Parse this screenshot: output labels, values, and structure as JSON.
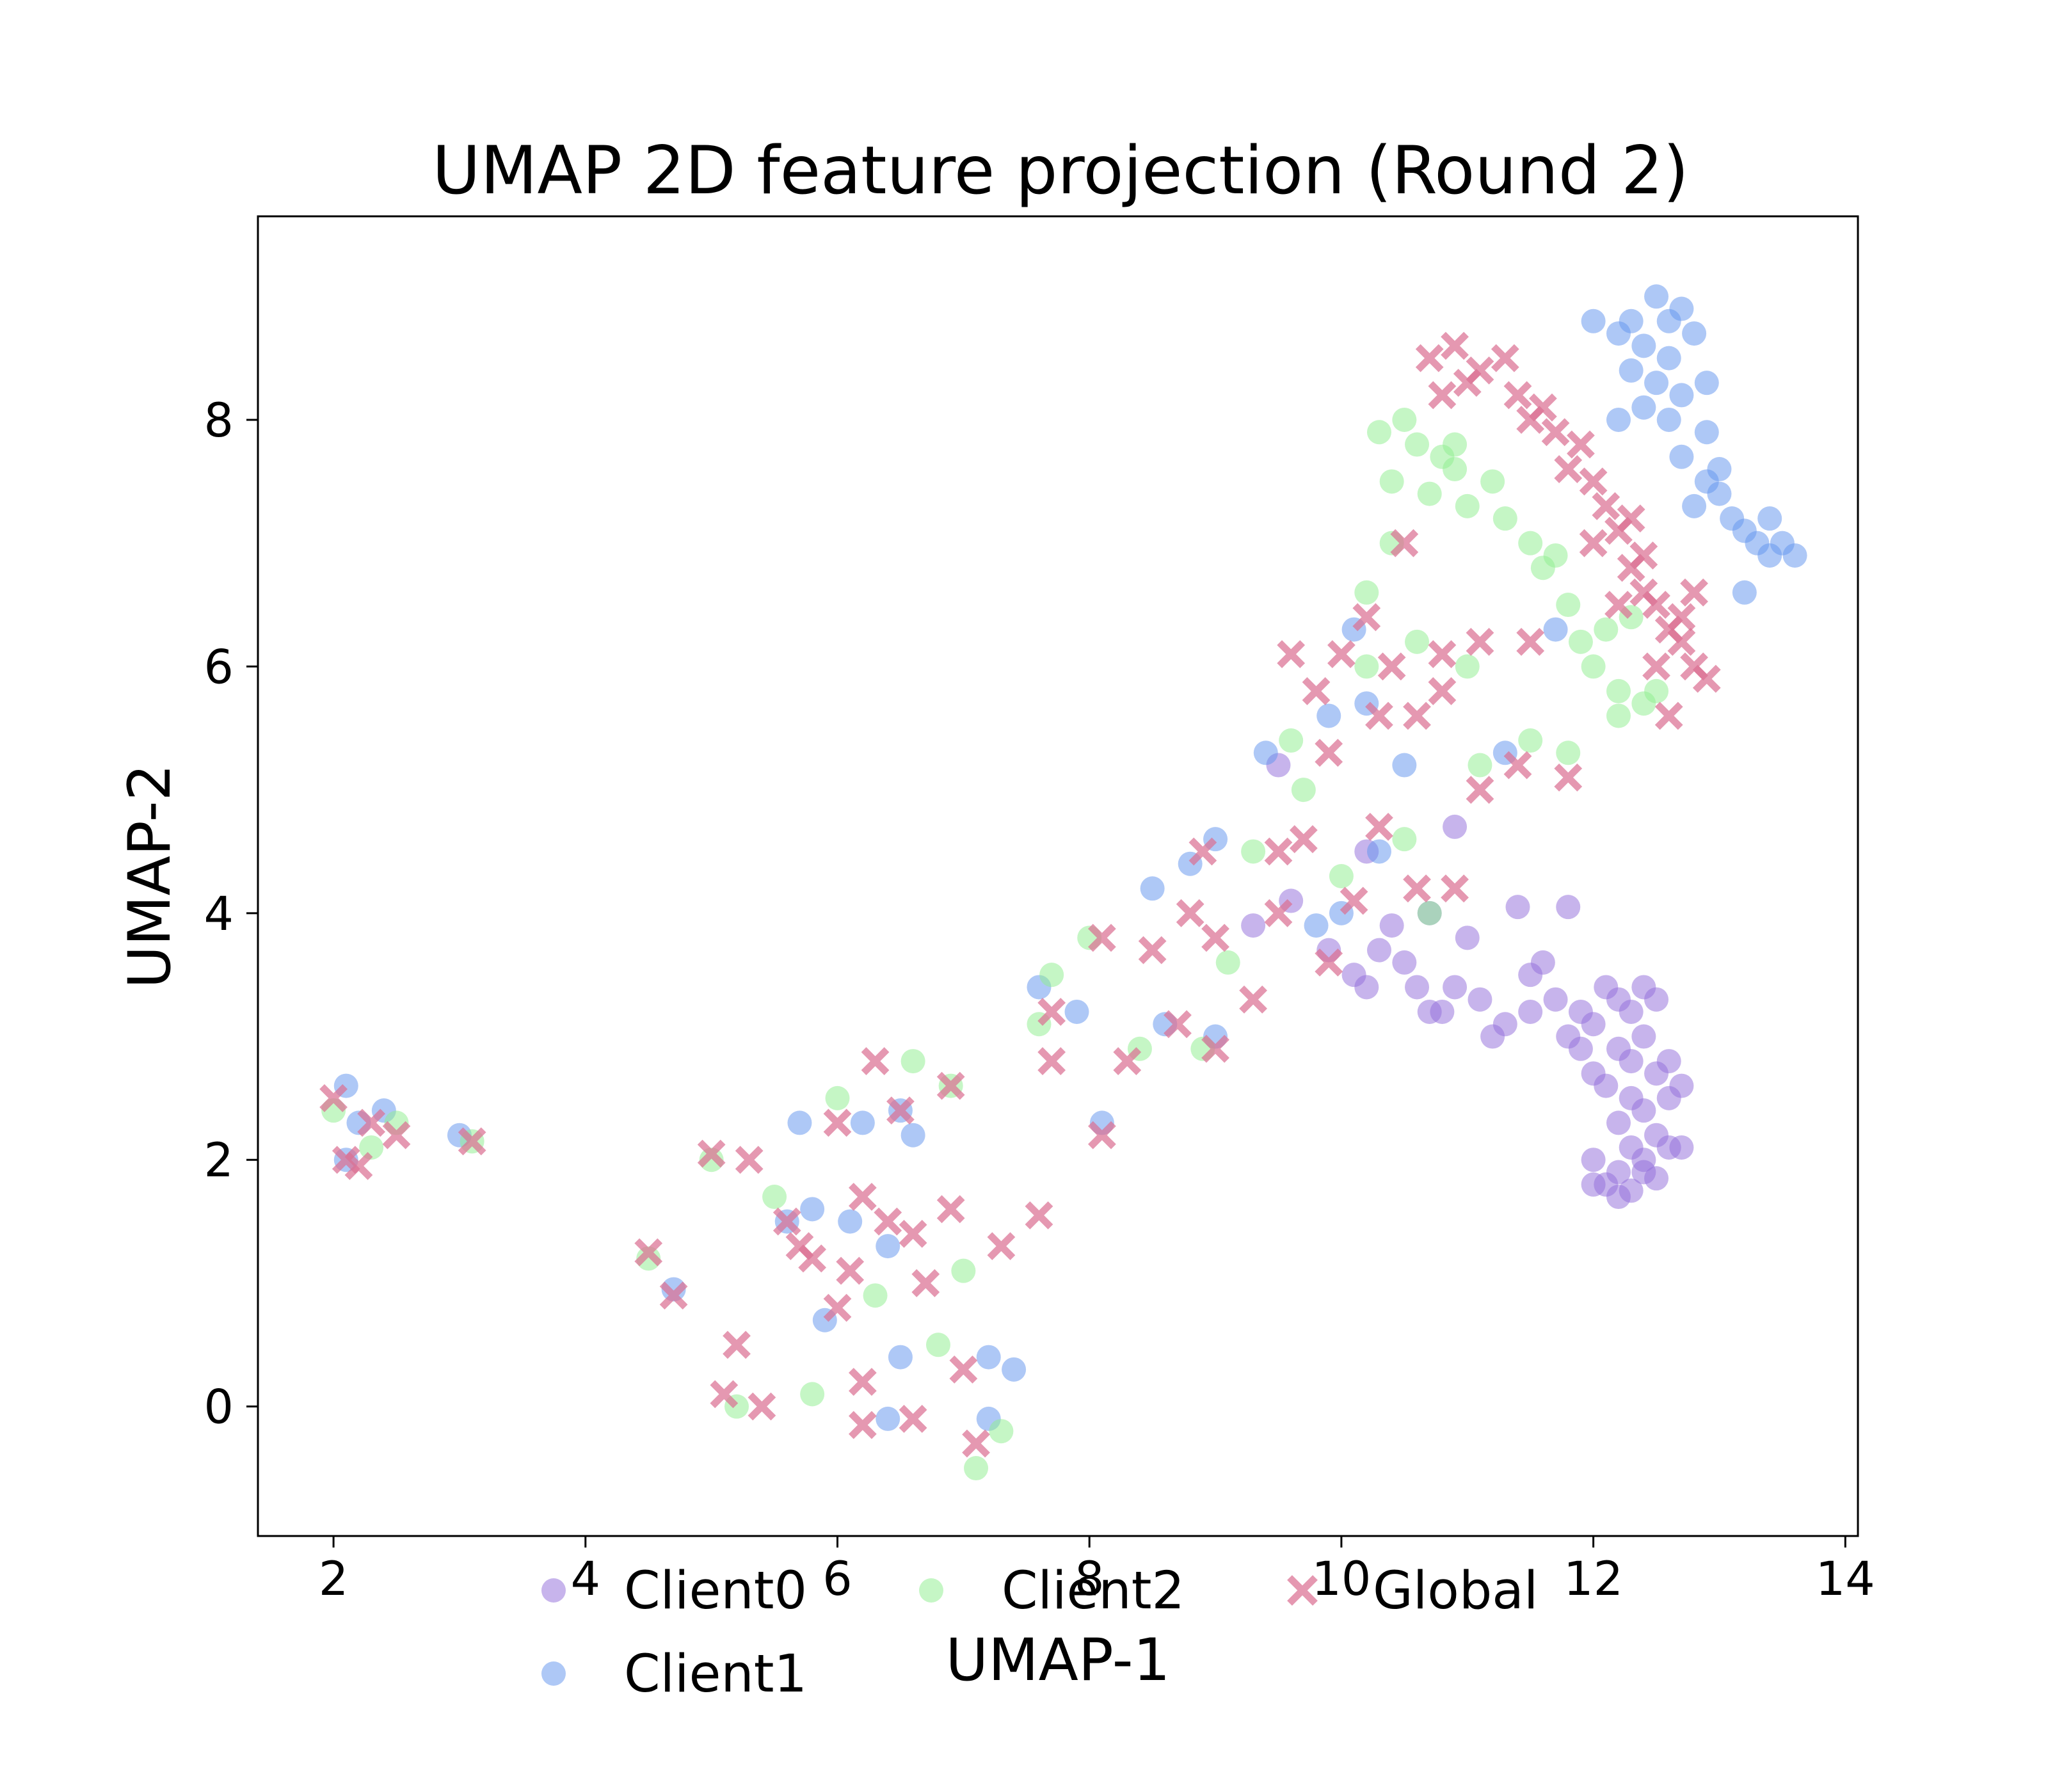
{
  "chart_data": {
    "type": "scatter",
    "title": "UMAP 2D feature projection (Round 2)",
    "xlabel": "UMAP-1",
    "ylabel": "UMAP-2",
    "xlim": [
      1.4,
      14.1
    ],
    "ylim": [
      -1.05,
      9.65
    ],
    "x_ticks": [
      2,
      4,
      6,
      8,
      10,
      12,
      14
    ],
    "y_ticks": [
      0,
      2,
      4,
      6,
      8
    ],
    "grid": false,
    "legend_position": "bottom-center",
    "series": [
      {
        "name": "Client0",
        "color": "#9370db",
        "marker": "circle",
        "points": [
          [
            12.1,
            3.4
          ],
          [
            12.2,
            3.3
          ],
          [
            12.3,
            3.2
          ],
          [
            12.0,
            3.1
          ],
          [
            12.4,
            3.0
          ],
          [
            12.2,
            2.9
          ],
          [
            12.3,
            2.8
          ],
          [
            12.5,
            2.7
          ],
          [
            12.1,
            2.6
          ],
          [
            12.3,
            2.5
          ],
          [
            12.4,
            2.4
          ],
          [
            12.2,
            2.3
          ],
          [
            12.5,
            2.2
          ],
          [
            12.3,
            2.1
          ],
          [
            12.4,
            2.0
          ],
          [
            12.2,
            1.9
          ],
          [
            12.5,
            1.85
          ],
          [
            12.1,
            1.8
          ],
          [
            12.3,
            1.75
          ],
          [
            12.2,
            1.7
          ],
          [
            12.4,
            1.9
          ],
          [
            12.6,
            2.1
          ],
          [
            12.0,
            2.0
          ],
          [
            12.6,
            2.5
          ],
          [
            12.5,
            3.3
          ],
          [
            12.4,
            3.4
          ],
          [
            11.9,
            3.2
          ],
          [
            11.8,
            3.0
          ],
          [
            12.6,
            2.8
          ],
          [
            12.0,
            2.7
          ],
          [
            11.7,
            3.3
          ],
          [
            11.5,
            3.2
          ],
          [
            11.3,
            3.1
          ],
          [
            11.1,
            3.3
          ],
          [
            10.9,
            3.4
          ],
          [
            10.7,
            3.2
          ],
          [
            10.6,
            3.4
          ],
          [
            10.5,
            3.6
          ],
          [
            10.3,
            3.7
          ],
          [
            10.1,
            3.5
          ],
          [
            11.0,
            3.8
          ],
          [
            11.5,
            3.5
          ],
          [
            11.2,
            3.0
          ],
          [
            10.8,
            3.2
          ],
          [
            11.4,
            4.05
          ],
          [
            11.8,
            4.05
          ],
          [
            9.9,
            3.7
          ],
          [
            10.4,
            3.9
          ],
          [
            10.7,
            4.0
          ],
          [
            11.6,
            3.6
          ],
          [
            10.2,
            3.4
          ],
          [
            11.9,
            2.9
          ],
          [
            12.7,
            2.1
          ],
          [
            12.7,
            2.6
          ],
          [
            12.0,
            1.8
          ],
          [
            10.9,
            4.7
          ],
          [
            10.2,
            4.5
          ],
          [
            9.6,
            4.1
          ],
          [
            9.5,
            5.2
          ],
          [
            9.3,
            3.9
          ]
        ]
      },
      {
        "name": "Client1",
        "color": "#6495ed",
        "marker": "circle",
        "points": [
          [
            12.3,
            8.8
          ],
          [
            12.5,
            9.0
          ],
          [
            12.7,
            8.9
          ],
          [
            12.4,
            8.6
          ],
          [
            12.6,
            8.5
          ],
          [
            12.2,
            8.7
          ],
          [
            12.8,
            8.7
          ],
          [
            12.5,
            8.3
          ],
          [
            12.7,
            8.2
          ],
          [
            12.3,
            8.4
          ],
          [
            12.6,
            8.0
          ],
          [
            12.4,
            8.1
          ],
          [
            12.9,
            7.9
          ],
          [
            12.7,
            7.7
          ],
          [
            12.9,
            7.5
          ],
          [
            13.0,
            7.4
          ],
          [
            13.1,
            7.2
          ],
          [
            13.2,
            7.1
          ],
          [
            13.3,
            7.0
          ],
          [
            13.4,
            7.2
          ],
          [
            13.5,
            7.0
          ],
          [
            13.6,
            6.9
          ],
          [
            13.2,
            6.6
          ],
          [
            12.8,
            7.3
          ],
          [
            13.0,
            7.6
          ],
          [
            12.2,
            8.0
          ],
          [
            12.0,
            8.8
          ],
          [
            12.6,
            8.8
          ],
          [
            12.9,
            8.3
          ],
          [
            13.4,
            6.9
          ],
          [
            2.1,
            2.6
          ],
          [
            2.2,
            2.3
          ],
          [
            2.4,
            2.4
          ],
          [
            2.1,
            2.0
          ],
          [
            3.0,
            2.2
          ],
          [
            4.7,
            0.95
          ],
          [
            5.6,
            1.5
          ],
          [
            5.8,
            1.6
          ],
          [
            6.1,
            1.5
          ],
          [
            6.4,
            1.3
          ],
          [
            6.2,
            2.3
          ],
          [
            6.5,
            2.4
          ],
          [
            6.6,
            2.2
          ],
          [
            5.9,
            0.7
          ],
          [
            6.5,
            0.4
          ],
          [
            7.2,
            0.4
          ],
          [
            7.4,
            0.3
          ],
          [
            7.2,
            -0.1
          ],
          [
            6.4,
            -0.1
          ],
          [
            5.7,
            2.3
          ],
          [
            7.6,
            3.4
          ],
          [
            7.9,
            3.2
          ],
          [
            8.1,
            2.3
          ],
          [
            8.5,
            4.2
          ],
          [
            8.8,
            4.4
          ],
          [
            9.0,
            4.6
          ],
          [
            9.4,
            5.3
          ],
          [
            9.9,
            5.6
          ],
          [
            10.2,
            5.7
          ],
          [
            10.5,
            5.2
          ],
          [
            10.0,
            4.0
          ],
          [
            10.3,
            4.5
          ],
          [
            11.3,
            5.3
          ],
          [
            11.7,
            6.3
          ],
          [
            10.1,
            6.3
          ],
          [
            9.8,
            3.9
          ],
          [
            9.0,
            3.0
          ],
          [
            8.6,
            3.1
          ]
        ]
      },
      {
        "name": "Client2",
        "color": "#90ee90",
        "marker": "circle",
        "points": [
          [
            10.3,
            7.9
          ],
          [
            10.5,
            8.0
          ],
          [
            10.6,
            7.8
          ],
          [
            10.8,
            7.7
          ],
          [
            10.4,
            7.5
          ],
          [
            10.7,
            7.4
          ],
          [
            10.9,
            7.6
          ],
          [
            11.0,
            7.3
          ],
          [
            11.2,
            7.5
          ],
          [
            11.3,
            7.2
          ],
          [
            11.5,
            7.0
          ],
          [
            11.6,
            6.8
          ],
          [
            11.8,
            6.5
          ],
          [
            11.9,
            6.2
          ],
          [
            12.0,
            6.0
          ],
          [
            12.2,
            5.8
          ],
          [
            12.1,
            6.3
          ],
          [
            12.3,
            6.4
          ],
          [
            12.4,
            5.7
          ],
          [
            10.4,
            7.0
          ],
          [
            10.2,
            6.6
          ],
          [
            10.6,
            6.2
          ],
          [
            11.0,
            6.0
          ],
          [
            11.1,
            5.2
          ],
          [
            11.5,
            5.4
          ],
          [
            11.8,
            5.3
          ],
          [
            12.5,
            5.8
          ],
          [
            12.2,
            5.6
          ],
          [
            10.9,
            7.8
          ],
          [
            11.7,
            6.9
          ],
          [
            2.0,
            2.4
          ],
          [
            2.3,
            2.1
          ],
          [
            2.5,
            2.3
          ],
          [
            3.1,
            2.15
          ],
          [
            4.5,
            1.2
          ],
          [
            5.0,
            2.0
          ],
          [
            5.5,
            1.7
          ],
          [
            6.3,
            0.9
          ],
          [
            6.8,
            0.5
          ],
          [
            7.0,
            1.1
          ],
          [
            7.1,
            -0.5
          ],
          [
            7.3,
            -0.2
          ],
          [
            7.7,
            3.5
          ],
          [
            7.6,
            3.1
          ],
          [
            8.0,
            3.8
          ],
          [
            8.4,
            2.9
          ],
          [
            8.9,
            2.9
          ],
          [
            9.1,
            3.6
          ],
          [
            9.3,
            4.5
          ],
          [
            9.6,
            5.4
          ],
          [
            10.0,
            4.3
          ],
          [
            10.5,
            4.6
          ],
          [
            10.7,
            4.0
          ],
          [
            10.2,
            6.0
          ],
          [
            9.7,
            5.0
          ],
          [
            5.2,
            0.0
          ],
          [
            5.8,
            0.1
          ],
          [
            6.0,
            2.5
          ],
          [
            6.6,
            2.8
          ],
          [
            6.9,
            2.6
          ]
        ]
      },
      {
        "name": "Global",
        "color": "#db7093",
        "marker": "x",
        "points": [
          [
            10.7,
            8.5
          ],
          [
            10.9,
            8.6
          ],
          [
            11.1,
            8.4
          ],
          [
            11.3,
            8.5
          ],
          [
            11.4,
            8.2
          ],
          [
            11.6,
            8.1
          ],
          [
            11.7,
            7.9
          ],
          [
            11.9,
            7.8
          ],
          [
            12.0,
            7.5
          ],
          [
            12.1,
            7.3
          ],
          [
            12.2,
            7.1
          ],
          [
            12.3,
            6.8
          ],
          [
            12.4,
            6.6
          ],
          [
            12.5,
            6.5
          ],
          [
            12.6,
            6.3
          ],
          [
            12.7,
            6.2
          ],
          [
            12.8,
            6.0
          ],
          [
            12.9,
            5.9
          ],
          [
            12.6,
            5.6
          ],
          [
            12.8,
            6.6
          ],
          [
            11.0,
            8.3
          ],
          [
            11.5,
            8.0
          ],
          [
            12.0,
            7.0
          ],
          [
            12.2,
            6.5
          ],
          [
            10.8,
            8.2
          ],
          [
            12.5,
            6.0
          ],
          [
            11.8,
            7.6
          ],
          [
            12.3,
            7.2
          ],
          [
            12.7,
            6.4
          ],
          [
            12.4,
            6.9
          ],
          [
            2.0,
            2.5
          ],
          [
            2.1,
            2.0
          ],
          [
            2.3,
            2.3
          ],
          [
            2.5,
            2.2
          ],
          [
            2.2,
            1.95
          ],
          [
            3.1,
            2.15
          ],
          [
            4.5,
            1.25
          ],
          [
            4.7,
            0.9
          ],
          [
            5.0,
            2.05
          ],
          [
            5.3,
            2.0
          ],
          [
            5.6,
            1.5
          ],
          [
            5.8,
            1.2
          ],
          [
            6.0,
            0.8
          ],
          [
            6.2,
            1.7
          ],
          [
            6.3,
            2.8
          ],
          [
            6.5,
            2.4
          ],
          [
            6.6,
            1.4
          ],
          [
            6.7,
            1.0
          ],
          [
            6.9,
            1.6
          ],
          [
            6.9,
            2.6
          ],
          [
            7.0,
            0.3
          ],
          [
            7.1,
            -0.3
          ],
          [
            7.3,
            1.3
          ],
          [
            7.6,
            1.55
          ],
          [
            5.2,
            0.5
          ],
          [
            5.4,
            0.0
          ],
          [
            5.1,
            0.1
          ],
          [
            6.2,
            0.2
          ],
          [
            6.6,
            -0.1
          ],
          [
            6.2,
            -0.15
          ],
          [
            7.7,
            3.2
          ],
          [
            7.7,
            2.8
          ],
          [
            8.1,
            2.2
          ],
          [
            8.1,
            3.8
          ],
          [
            8.3,
            2.8
          ],
          [
            8.5,
            3.7
          ],
          [
            8.7,
            3.1
          ],
          [
            8.8,
            4.0
          ],
          [
            8.9,
            4.5
          ],
          [
            9.0,
            3.8
          ],
          [
            9.0,
            2.9
          ],
          [
            9.3,
            3.3
          ],
          [
            9.5,
            4.0
          ],
          [
            9.7,
            4.6
          ],
          [
            9.9,
            5.3
          ],
          [
            10.0,
            6.1
          ],
          [
            10.2,
            6.4
          ],
          [
            10.4,
            6.0
          ],
          [
            10.6,
            5.6
          ],
          [
            10.8,
            6.1
          ],
          [
            10.1,
            4.1
          ],
          [
            10.3,
            4.7
          ],
          [
            10.6,
            4.2
          ],
          [
            10.9,
            4.2
          ],
          [
            11.1,
            5.0
          ],
          [
            11.4,
            5.2
          ],
          [
            11.8,
            5.1
          ],
          [
            11.5,
            6.2
          ],
          [
            11.1,
            6.2
          ],
          [
            10.8,
            5.8
          ],
          [
            9.6,
            6.1
          ],
          [
            9.8,
            5.8
          ],
          [
            10.3,
            5.6
          ],
          [
            9.5,
            4.5
          ],
          [
            9.9,
            3.6
          ],
          [
            10.5,
            7.0
          ],
          [
            6.0,
            2.3
          ],
          [
            5.7,
            1.3
          ],
          [
            6.1,
            1.1
          ],
          [
            6.4,
            1.5
          ]
        ]
      }
    ]
  }
}
